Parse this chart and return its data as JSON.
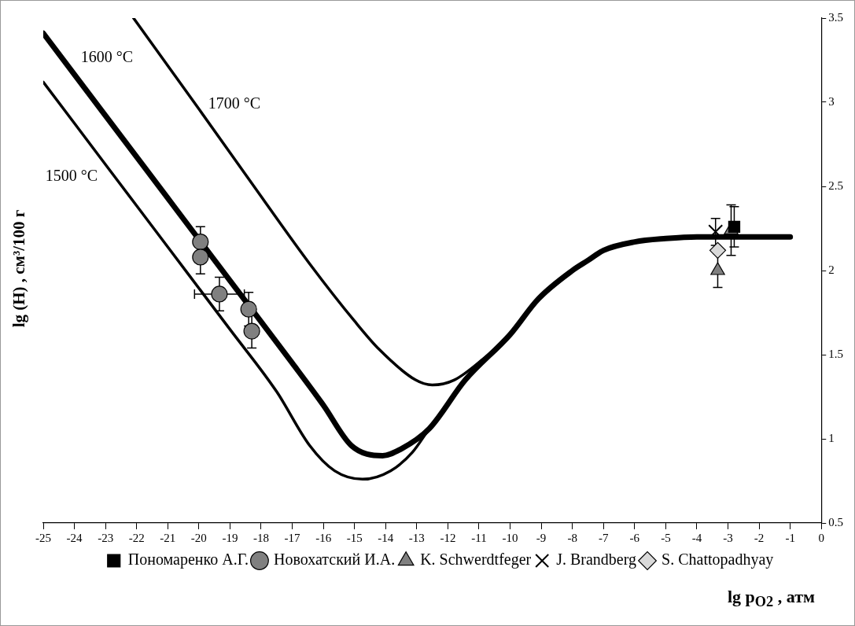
{
  "chart_data": {
    "type": "line",
    "ylabel": "lg (H) , см³/100 г",
    "xlabel": "lg p$_{O2}$ , атм",
    "xlim": [
      -25,
      0
    ],
    "xticks": [
      -25,
      -24,
      -23,
      -22,
      -21,
      -20,
      -19,
      -18,
      -17,
      -16,
      -15,
      -14,
      -13,
      -12,
      -11,
      -10,
      -9,
      -8,
      -7,
      -6,
      -5,
      -4,
      -3,
      -2,
      -1,
      0
    ],
    "ylim": [
      0.5,
      3.5
    ],
    "yticks": [
      0.5,
      1,
      1.5,
      2,
      2.5,
      3,
      3.5
    ],
    "grid": false,
    "legend": "bottom",
    "line_style": "solid",
    "series": [
      {
        "name": "1500 °C",
        "color": "#000000",
        "marker": "none",
        "x": [
          -25,
          -23,
          -21,
          -19,
          -17.5,
          -16.44,
          -15.64,
          -14.74,
          -13.84,
          -13.14,
          -12.6,
          -11.44,
          -10,
          -9.1,
          -8,
          -7.5,
          -7,
          -6,
          -5,
          -4,
          -3,
          -2,
          -1
        ],
        "values": [
          3.12,
          2.63,
          2.14,
          1.65,
          1.28,
          0.96,
          0.81,
          0.76,
          0.81,
          0.92,
          1.06,
          1.35,
          1.62,
          1.83,
          2.0,
          2.06,
          2.12,
          2.17,
          2.19,
          2.2,
          2.2,
          2.2,
          2.2
        ]
      },
      {
        "name": "1600 °C",
        "color": "#000000",
        "marker": "none",
        "x": [
          -25,
          -23,
          -21,
          -19,
          -17,
          -16,
          -15.1,
          -14.1,
          -13.5,
          -12.6,
          -11.44,
          -10,
          -9.1,
          -8,
          -7.5,
          -7,
          -6,
          -5,
          -4,
          -3,
          -2,
          -1
        ],
        "values": [
          3.41,
          2.92,
          2.43,
          1.94,
          1.45,
          1.2,
          0.96,
          0.9,
          0.94,
          1.06,
          1.35,
          1.62,
          1.83,
          2.0,
          2.06,
          2.12,
          2.17,
          2.19,
          2.2,
          2.2,
          2.2,
          2.2
        ]
      },
      {
        "name": "1700 °C",
        "color": "#000000",
        "marker": "none",
        "x": [
          -22.1,
          -20,
          -18,
          -16.44,
          -15,
          -14.2,
          -13.04,
          -12.5,
          -11.79,
          -10.9,
          -10,
          -9.1,
          -8,
          -7.5,
          -7,
          -6,
          -5,
          -4,
          -3,
          -2,
          -1
        ],
        "values": [
          3.5,
          2.96,
          2.44,
          2.04,
          1.7,
          1.53,
          1.35,
          1.32,
          1.35,
          1.47,
          1.62,
          1.83,
          2.0,
          2.06,
          2.12,
          2.17,
          2.19,
          2.2,
          2.2,
          2.2,
          2.2
        ]
      },
      {
        "type": "scatter",
        "name": "Пономаренко А.Г.",
        "color": "#000000",
        "marker": "square",
        "x": [
          -2.8
        ],
        "values": [
          2.26
        ],
        "errors": [
          0.12
        ]
      },
      {
        "type": "scatter",
        "name": "Новохатский И.А.",
        "color": "#808080",
        "marker": "circle",
        "x": [
          -19.95,
          -19.95,
          -19.34,
          -18.4,
          -18.3
        ],
        "values": [
          2.17,
          2.08,
          1.86,
          1.77,
          1.64
        ],
        "errors": [
          0.09,
          0.1,
          0.1,
          0.1,
          0.1
        ],
        "xerrors": [
          null,
          null,
          0.8,
          null,
          null
        ]
      },
      {
        "type": "scatter",
        "name": "K. Schwerdtfeger",
        "color": "#808080",
        "marker": "triangle",
        "x": [
          -2.9,
          -3.33
        ],
        "values": [
          2.24,
          2.0
        ],
        "errors": [
          0.15,
          0.1
        ]
      },
      {
        "type": "scatter",
        "name": "J. Brandberg",
        "color": "#000000",
        "marker": "cross",
        "x": [
          -3.4
        ],
        "values": [
          2.23
        ],
        "errors": [
          0.08
        ]
      },
      {
        "type": "scatter",
        "name": "S. Chattopadhyay",
        "color": "#d9d9d9",
        "marker": "diamond",
        "x": [
          -3.33
        ],
        "values": [
          2.12
        ]
      }
    ]
  }
}
